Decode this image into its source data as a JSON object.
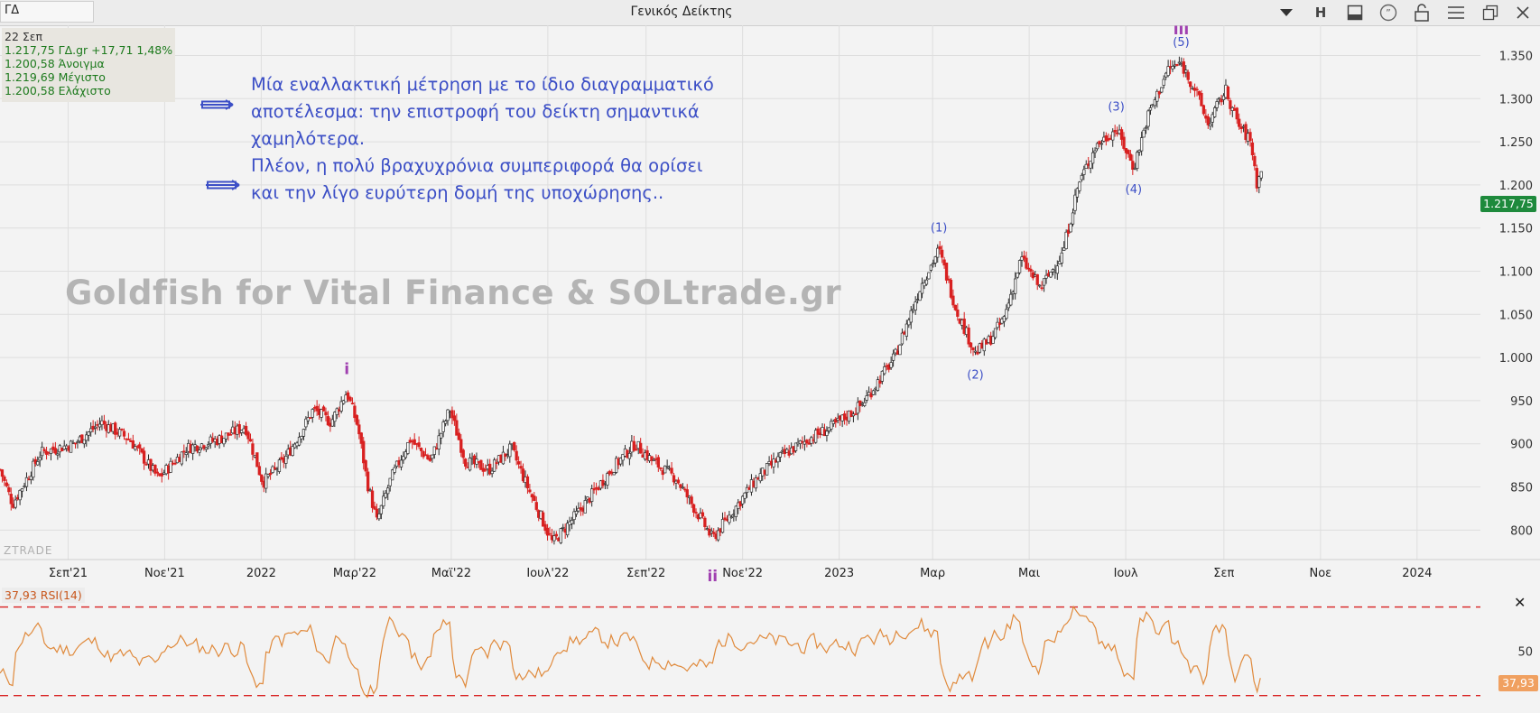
{
  "toolbar": {
    "symbol": "ΓΔ",
    "title": "Γενικός Δείκτης",
    "h_label": "H",
    "icons": [
      "dropdown-arrow-icon",
      "h-button",
      "layout-icon",
      "comment-icon",
      "lock-icon",
      "menu-icon",
      "restore-window-icon",
      "close-window-icon"
    ]
  },
  "info": {
    "date": "22 Σεπ",
    "last": "1.217,75 ΓΔ.gr +17,71 1,48%",
    "open": "1.200,58 Άνοιγμα",
    "high": "1.219,69 Μέγιστο",
    "low": "1.200,58 Ελάχιστο"
  },
  "annotation": {
    "p1": "Μία εναλλακτική μέτρηση με το ίδιο διαγραμματικό αποτέλεσμα: την επιστροφή του δείκτη σημαντικά χαμηλότερα.",
    "p2": "Πλέον, η πολύ βραχυχρόνια συμπεριφορά θα ορίσει και την λίγο ευρύτερη δομή της υποχώρησης.."
  },
  "watermark": "Goldfish for Vital Finance & SOLtrade.gr",
  "brand": "ZTRADE",
  "current_price_label": "1.217,75",
  "rsi_label": "37,93 RSI(14)",
  "rsi_value_label": "37,93",
  "rsi_axis_label": "50",
  "colors": {
    "up": "#2a2a2a",
    "down": "#d82020",
    "rsi": "#e08a3c",
    "wave": "#3c4fc6",
    "wave_roman": "#a040b0",
    "guide": "#d82020"
  },
  "chart_data": {
    "type": "candlestick",
    "title": "Γενικός Δείκτης",
    "y_ticks": [
      800,
      850,
      900,
      950,
      1000,
      1050,
      1100,
      1150,
      1200,
      1250,
      1300,
      1350
    ],
    "y_tick_labels": [
      "800",
      "850",
      "900",
      "950",
      "1.000",
      "1.050",
      "1.100",
      "1.150",
      "1.200",
      "1.250",
      "1.300",
      "1.350"
    ],
    "ylim": [
      770,
      1385
    ],
    "x_ticks": [
      "Σεπ'21",
      "Νοε'21",
      "2022",
      "Μαρ'22",
      "Μαϊ'22",
      "Ιουλ'22",
      "Σεπ'22",
      "Νοε'22",
      "2023",
      "Μαρ",
      "Μαι",
      "Ιουλ",
      "Σεπ",
      "Νοε",
      "2024"
    ],
    "x_range": [
      "2021-07-20",
      "2024-02-10"
    ],
    "path": [
      [
        "2021-07-20",
        870
      ],
      [
        "2021-07-28",
        830
      ],
      [
        "2021-08-15",
        890
      ],
      [
        "2021-09-05",
        900
      ],
      [
        "2021-09-22",
        925
      ],
      [
        "2021-10-10",
        905
      ],
      [
        "2021-10-28",
        860
      ],
      [
        "2021-11-15",
        895
      ],
      [
        "2021-12-05",
        905
      ],
      [
        "2021-12-22",
        920
      ],
      [
        "2022-01-02",
        855
      ],
      [
        "2022-01-15",
        880
      ],
      [
        "2022-01-25",
        910
      ],
      [
        "2022-02-03",
        940
      ],
      [
        "2022-02-14",
        925
      ],
      [
        "2022-02-24",
        960
      ],
      [
        "2022-03-03",
        920
      ],
      [
        "2022-03-09",
        855
      ],
      [
        "2022-03-15",
        810
      ],
      [
        "2022-03-24",
        860
      ],
      [
        "2022-04-05",
        905
      ],
      [
        "2022-04-18",
        880
      ],
      [
        "2022-04-30",
        940
      ],
      [
        "2022-05-10",
        880
      ],
      [
        "2022-05-25",
        870
      ],
      [
        "2022-06-08",
        895
      ],
      [
        "2022-06-17",
        855
      ],
      [
        "2022-07-04",
        785
      ],
      [
        "2022-07-20",
        820
      ],
      [
        "2022-08-10",
        870
      ],
      [
        "2022-08-25",
        900
      ],
      [
        "2022-09-05",
        880
      ],
      [
        "2022-09-20",
        860
      ],
      [
        "2022-10-05",
        815
      ],
      [
        "2022-10-13",
        790
      ],
      [
        "2022-10-25",
        820
      ],
      [
        "2022-11-10",
        860
      ],
      [
        "2022-11-25",
        885
      ],
      [
        "2022-12-12",
        905
      ],
      [
        "2022-12-28",
        920
      ],
      [
        "2023-01-15",
        945
      ],
      [
        "2023-02-05",
        1000
      ],
      [
        "2023-02-22",
        1085
      ],
      [
        "2023-03-05",
        1125
      ],
      [
        "2023-03-16",
        1055
      ],
      [
        "2023-03-28",
        1005
      ],
      [
        "2023-04-06",
        1020
      ],
      [
        "2023-04-15",
        1045
      ],
      [
        "2023-04-26",
        1115
      ],
      [
        "2023-05-08",
        1080
      ],
      [
        "2023-05-22",
        1120
      ],
      [
        "2023-06-01",
        1200
      ],
      [
        "2023-06-12",
        1245
      ],
      [
        "2023-06-25",
        1265
      ],
      [
        "2023-07-06",
        1220
      ],
      [
        "2023-07-15",
        1280
      ],
      [
        "2023-07-28",
        1335
      ],
      [
        "2023-08-05",
        1340
      ],
      [
        "2023-08-14",
        1310
      ],
      [
        "2023-08-22",
        1270
      ],
      [
        "2023-09-02",
        1310
      ],
      [
        "2023-09-10",
        1270
      ],
      [
        "2023-09-18",
        1250
      ],
      [
        "2023-09-22",
        1200
      ],
      [
        "2023-09-25",
        1218
      ]
    ],
    "wave_labels": [
      {
        "text": "i",
        "date": "2022-02-24",
        "price": 960,
        "pos": "above",
        "roman": true
      },
      {
        "text": "ii",
        "date": "2022-10-13",
        "price": 790,
        "pos": "axis",
        "roman": true
      },
      {
        "text": "iii",
        "date": "2023-08-05",
        "price": 1340,
        "pos": "above2",
        "roman": true
      },
      {
        "text": "(1)",
        "date": "2023-03-05",
        "price": 1125,
        "pos": "above"
      },
      {
        "text": "(2)",
        "date": "2023-03-28",
        "price": 1005,
        "pos": "below"
      },
      {
        "text": "(3)",
        "date": "2023-06-25",
        "price": 1265,
        "pos": "above"
      },
      {
        "text": "(4)",
        "date": "2023-07-06",
        "price": 1220,
        "pos": "below"
      },
      {
        "text": "(5)",
        "date": "2023-08-05",
        "price": 1340,
        "pos": "above"
      }
    ],
    "last_close": 1217.75,
    "rsi": {
      "name": "RSI(14)",
      "last": 37.93,
      "levels": [
        70,
        30
      ],
      "ylim": [
        25,
        80
      ],
      "axis_ticks": [
        50
      ]
    }
  }
}
